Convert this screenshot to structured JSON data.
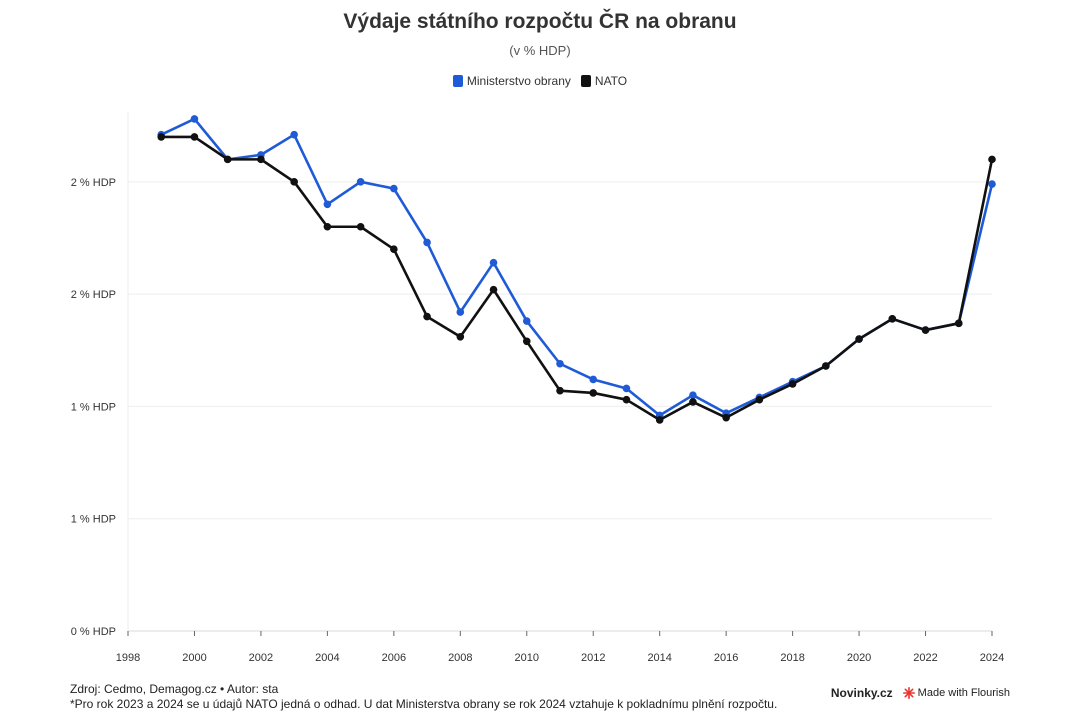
{
  "chart_data": {
    "type": "line",
    "title": "Výdaje státního rozpočtu ČR na obranu",
    "subtitle": "(v % HDP)",
    "xlabel": "",
    "ylabel": "",
    "x": [
      1999,
      2000,
      2001,
      2002,
      2003,
      2004,
      2005,
      2006,
      2007,
      2008,
      2009,
      2010,
      2011,
      2012,
      2013,
      2014,
      2015,
      2016,
      2017,
      2018,
      2019,
      2020,
      2021,
      2022,
      2023,
      2024
    ],
    "x_ticks": [
      1998,
      2000,
      2002,
      2004,
      2006,
      2008,
      2010,
      2012,
      2014,
      2016,
      2018,
      2020,
      2022,
      2024
    ],
    "xlim": [
      1998,
      2024
    ],
    "y_ticks": [
      {
        "value": 0,
        "label": "0 % HDP"
      },
      {
        "value": 0.5,
        "label": "1 % HDP"
      },
      {
        "value": 1.0,
        "label": "1 % HDP"
      },
      {
        "value": 1.5,
        "label": "2 % HDP"
      },
      {
        "value": 2.0,
        "label": "2 % HDP"
      }
    ],
    "ylim": [
      0,
      2.4
    ],
    "grid": true,
    "legend_position": "top-center",
    "series": [
      {
        "name": "Ministerstvo obrany",
        "color": "#1f5bd6",
        "values": [
          2.21,
          2.28,
          2.1,
          2.12,
          2.21,
          1.9,
          2.0,
          1.97,
          1.73,
          1.42,
          1.64,
          1.38,
          1.19,
          1.12,
          1.08,
          0.96,
          1.05,
          0.97,
          1.04,
          1.11,
          1.18,
          1.3,
          1.39,
          1.34,
          1.37,
          1.99
        ]
      },
      {
        "name": "NATO",
        "color": "#111111",
        "values": [
          2.2,
          2.2,
          2.1,
          2.1,
          2.0,
          1.8,
          1.8,
          1.7,
          1.4,
          1.31,
          1.52,
          1.29,
          1.07,
          1.06,
          1.03,
          0.94,
          1.02,
          0.95,
          1.03,
          1.1,
          1.18,
          1.3,
          1.39,
          1.34,
          1.37,
          2.1
        ]
      }
    ]
  },
  "footer": {
    "source": "Zdroj: Cedmo, Demagog.cz • Autor: sta",
    "note": "*Pro rok 2023 a 2024 se u údajů NATO jedná o odhad. U dat Ministerstva obrany se rok 2024 vztahuje k pokladnímu plnění rozpočtu."
  },
  "branding": {
    "site": "Novinky.cz",
    "flourish": "Made with Flourish",
    "flourish_color": "#e8352e"
  }
}
